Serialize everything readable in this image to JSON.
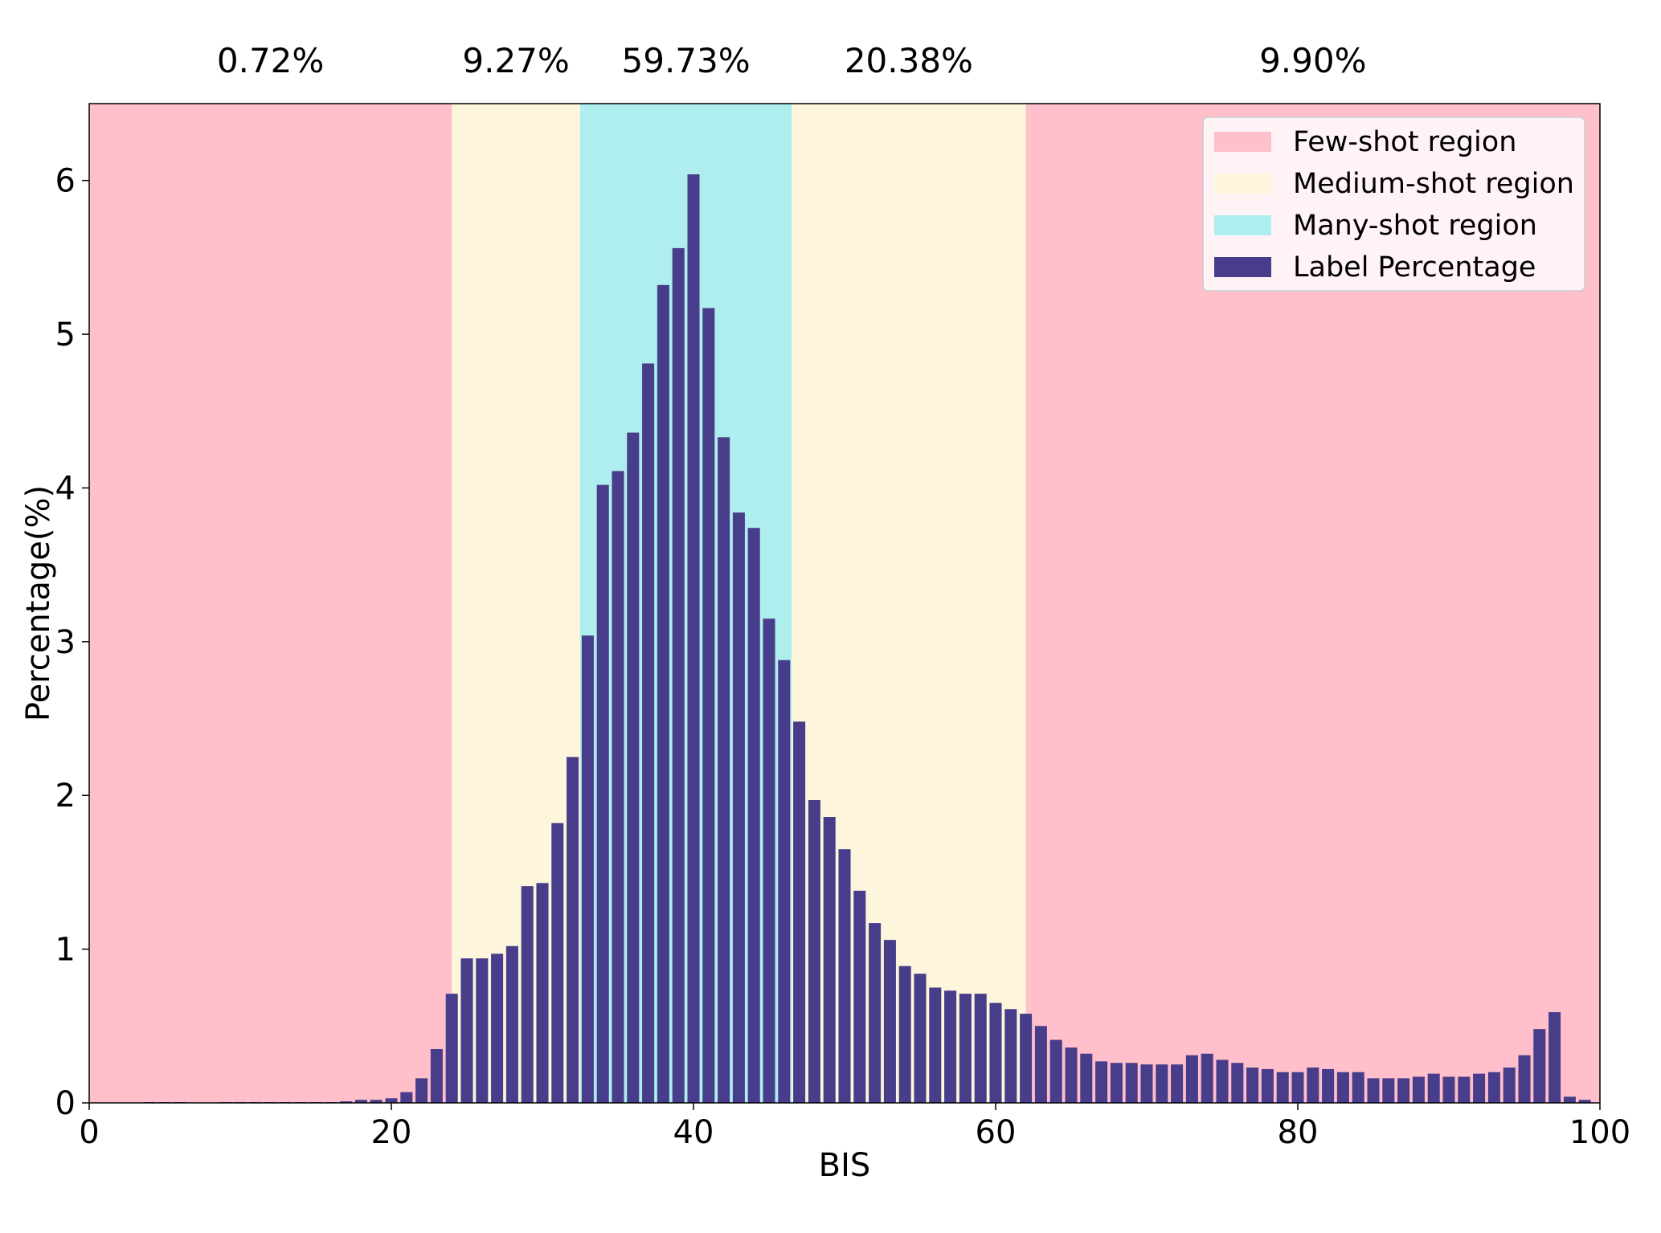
{
  "chart_data": {
    "type": "bar",
    "xlabel": "BIS",
    "ylabel": "Percentage(%)",
    "xlim": [
      0,
      100
    ],
    "ylim": [
      0,
      6.5
    ],
    "x_ticks": [
      "0",
      "20",
      "40",
      "60",
      "80",
      "100"
    ],
    "y_ticks": [
      "0",
      "1",
      "2",
      "3",
      "4",
      "5",
      "6"
    ],
    "colors": {
      "few": "#ffc0cb",
      "medium": "#fdf5dc",
      "many": "#afeeee",
      "bar": "#483d8b"
    },
    "regions": [
      {
        "name": "Few-shot region",
        "kind": "few",
        "start": 0,
        "end": 24,
        "percent_label": "0.72%"
      },
      {
        "name": "Medium-shot region",
        "kind": "medium",
        "start": 24,
        "end": 32.5,
        "percent_label": "9.27%"
      },
      {
        "name": "Many-shot region",
        "kind": "many",
        "start": 32.5,
        "end": 46.5,
        "percent_label": "59.73%"
      },
      {
        "name": "Medium-shot region",
        "kind": "medium",
        "start": 46.5,
        "end": 62,
        "percent_label": "20.38%"
      },
      {
        "name": "Few-shot region",
        "kind": "few",
        "start": 62,
        "end": 100,
        "percent_label": "9.90%"
      }
    ],
    "legend": [
      {
        "label": "Few-shot region",
        "kind": "few"
      },
      {
        "label": "Medium-shot region",
        "kind": "medium"
      },
      {
        "label": "Many-shot region",
        "kind": "many"
      },
      {
        "label": "Label Percentage",
        "kind": "bar"
      }
    ],
    "legend_position": "top-right",
    "series": [
      {
        "name": "Label Percentage",
        "x": [
          4,
          5,
          6,
          9,
          10,
          11,
          12,
          13,
          14,
          15,
          16,
          17,
          18,
          19,
          20,
          21,
          22,
          23,
          24,
          25,
          26,
          27,
          28,
          29,
          30,
          31,
          32,
          33,
          34,
          35,
          36,
          37,
          38,
          39,
          40,
          41,
          42,
          43,
          44,
          45,
          46,
          47,
          48,
          49,
          50,
          51,
          52,
          53,
          54,
          55,
          56,
          57,
          58,
          59,
          60,
          61,
          62,
          63,
          64,
          65,
          66,
          67,
          68,
          69,
          70,
          71,
          72,
          73,
          74,
          75,
          76,
          77,
          78,
          79,
          80,
          81,
          82,
          83,
          84,
          85,
          86,
          87,
          88,
          89,
          90,
          91,
          92,
          93,
          94,
          95,
          96,
          97,
          98,
          99
        ],
        "values": [
          0.005,
          0.005,
          0.005,
          0.005,
          0.005,
          0.005,
          0.005,
          0.005,
          0.005,
          0.005,
          0.005,
          0.01,
          0.02,
          0.02,
          0.03,
          0.07,
          0.16,
          0.35,
          0.71,
          0.94,
          0.94,
          0.97,
          1.02,
          1.41,
          1.43,
          1.82,
          2.25,
          3.04,
          4.02,
          4.11,
          4.36,
          4.81,
          5.32,
          5.56,
          6.04,
          5.17,
          4.33,
          3.84,
          3.74,
          3.15,
          2.88,
          2.48,
          1.97,
          1.86,
          1.65,
          1.38,
          1.17,
          1.06,
          0.89,
          0.84,
          0.75,
          0.73,
          0.71,
          0.71,
          0.65,
          0.61,
          0.58,
          0.5,
          0.41,
          0.36,
          0.32,
          0.27,
          0.26,
          0.26,
          0.25,
          0.25,
          0.25,
          0.31,
          0.32,
          0.28,
          0.26,
          0.23,
          0.22,
          0.2,
          0.2,
          0.23,
          0.22,
          0.2,
          0.2,
          0.16,
          0.16,
          0.16,
          0.17,
          0.19,
          0.17,
          0.17,
          0.19,
          0.2,
          0.23,
          0.31,
          0.48,
          0.59,
          0.04,
          0.02
        ]
      }
    ]
  }
}
